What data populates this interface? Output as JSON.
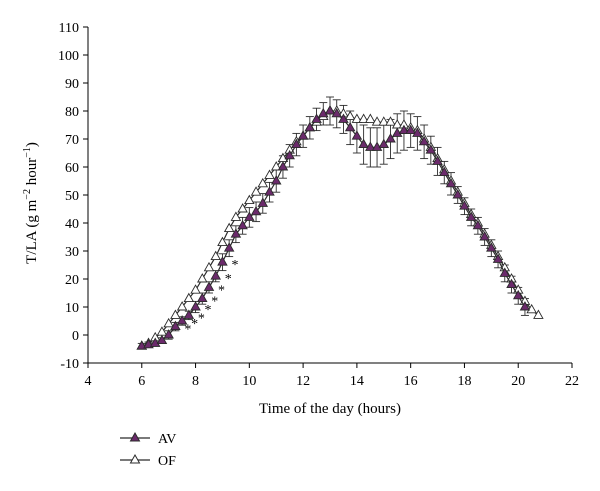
{
  "chart_data": {
    "type": "line",
    "title": "",
    "xlabel": "Time of the day (hours)",
    "ylabel": "T/LA (g m",
    "ylabel_sup1": "−2",
    "ylabel_mid": " hour",
    "ylabel_sup2": "−1",
    "ylabel_end": ")",
    "xlim": [
      4,
      22
    ],
    "ylim": [
      -10,
      110
    ],
    "xticks": [
      4,
      6,
      8,
      10,
      12,
      14,
      16,
      18,
      20,
      22
    ],
    "yticks": [
      -10,
      0,
      10,
      20,
      30,
      40,
      50,
      60,
      70,
      80,
      90,
      100,
      110
    ],
    "grid": false,
    "legend_position": "bottom-left",
    "colors": {
      "AV": "#6b2a6b",
      "OF": "#ffffff",
      "line": "#2b2b2b"
    },
    "significance_marker": "*",
    "series": [
      {
        "name": "AV",
        "marker": "filled-triangle",
        "x": [
          6.0,
          6.25,
          6.5,
          6.75,
          7.0,
          7.25,
          7.5,
          7.75,
          8.0,
          8.25,
          8.5,
          8.75,
          9.0,
          9.25,
          9.5,
          9.75,
          10.0,
          10.25,
          10.5,
          10.75,
          11.0,
          11.25,
          11.5,
          11.75,
          12.0,
          12.25,
          12.5,
          12.75,
          13.0,
          13.25,
          13.5,
          13.75,
          14.0,
          14.25,
          14.5,
          14.75,
          15.0,
          15.25,
          15.5,
          15.75,
          16.0,
          16.25,
          16.5,
          16.75,
          17.0,
          17.25,
          17.5,
          17.75,
          18.0,
          18.25,
          18.5,
          18.75,
          19.0,
          19.25,
          19.5,
          19.75,
          20.0,
          20.25
        ],
        "y": [
          -4,
          -3.5,
          -3,
          -2,
          0,
          3,
          5,
          7,
          10,
          13,
          17,
          21,
          26,
          31,
          36,
          39,
          42,
          44,
          47,
          51,
          55,
          60,
          64,
          68,
          71,
          74,
          77,
          79,
          80,
          79,
          77,
          74,
          71,
          68,
          67,
          67,
          68,
          70,
          72,
          73,
          73,
          72,
          69,
          66,
          62,
          58,
          54,
          50,
          46,
          42,
          39,
          35,
          31,
          27,
          22,
          18,
          14,
          10
        ],
        "err": [
          1,
          1,
          1,
          1,
          1.5,
          1.5,
          1.5,
          1.5,
          2,
          2,
          2,
          2,
          3,
          3,
          3,
          3,
          3.5,
          3.5,
          3.5,
          3.5,
          4,
          4,
          4,
          4,
          4,
          4,
          4,
          4,
          5,
          5,
          5,
          6,
          6,
          7,
          7,
          7,
          7,
          7,
          7,
          7,
          6,
          6,
          6,
          5,
          5,
          4,
          4,
          3,
          3,
          3,
          3,
          3,
          3,
          3,
          3,
          3,
          3,
          3
        ]
      },
      {
        "name": "OF",
        "marker": "open-triangle",
        "x": [
          6.0,
          6.25,
          6.5,
          6.75,
          7.0,
          7.25,
          7.5,
          7.75,
          8.0,
          8.25,
          8.5,
          8.75,
          9.0,
          9.25,
          9.5,
          9.75,
          10.0,
          10.25,
          10.5,
          10.75,
          11.0,
          11.25,
          11.5,
          11.75,
          12.0,
          12.25,
          12.5,
          12.75,
          13.0,
          13.25,
          13.5,
          13.75,
          14.0,
          14.25,
          14.5,
          14.75,
          15.0,
          15.25,
          15.5,
          15.75,
          16.0,
          16.25,
          16.5,
          16.75,
          17.0,
          17.25,
          17.5,
          17.75,
          18.0,
          18.25,
          18.5,
          18.75,
          19.0,
          19.25,
          19.5,
          19.75,
          20.0,
          20.25,
          20.5,
          20.75
        ],
        "y": [
          -4,
          -3,
          -1,
          1,
          4,
          7,
          10,
          13,
          16,
          20,
          24,
          28,
          33,
          38,
          42,
          45,
          48,
          51,
          54,
          57,
          60,
          63,
          66,
          69,
          71,
          74,
          76,
          78,
          80,
          80,
          79,
          78,
          77,
          77,
          77,
          76,
          76,
          76,
          75,
          75,
          74,
          73,
          70,
          67,
          63,
          59,
          55,
          51,
          47,
          43,
          40,
          36,
          32,
          28,
          24,
          20,
          16,
          12,
          9,
          7
        ]
      }
    ],
    "significance_x": [
      7.25,
      7.5,
      7.75,
      8.0,
      8.25,
      8.5,
      8.75,
      9.0
    ]
  }
}
